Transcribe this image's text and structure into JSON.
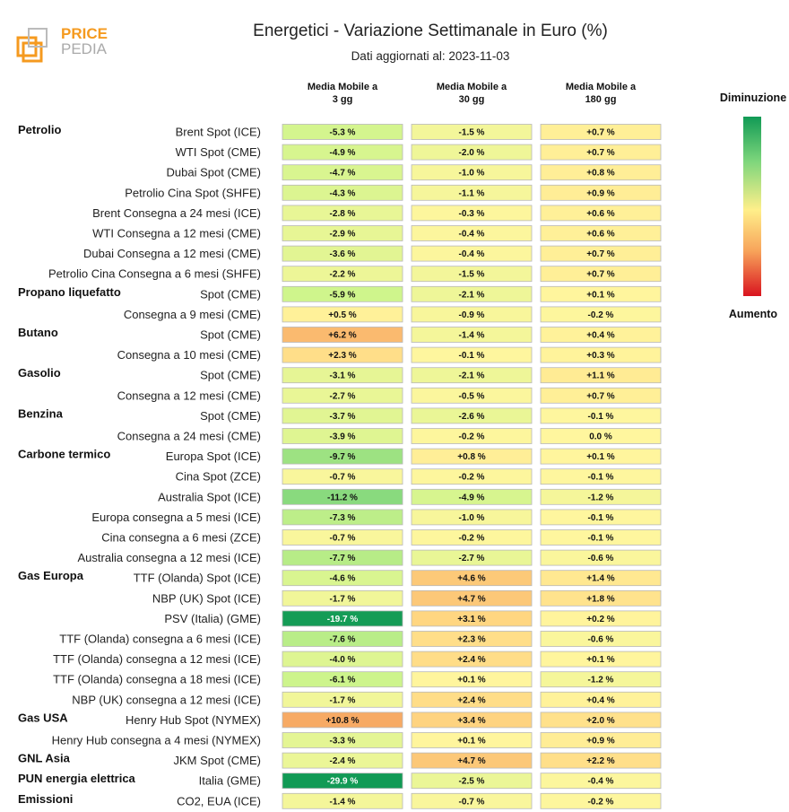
{
  "header": {
    "logo_text_top": "PRICE",
    "logo_text_bottom": "PEDIA",
    "title": "Energetici - Variazione Settimanale in Euro (%)",
    "subtitle": "Dati aggiornati al: 2023-11-03"
  },
  "legend": {
    "top_label": "Diminuzione",
    "bottom_label": "Aumento"
  },
  "chart_data": {
    "type": "table",
    "title": "Energetici - Variazione Settimanale in Euro (%)",
    "columns": [
      "Media Mobile a\n3 gg",
      "Media Mobile a\n30 gg",
      "Media Mobile a\n180 gg"
    ],
    "rows": [
      {
        "group": "Petrolio",
        "label": "Brent Spot (ICE)",
        "values": [
          "-5.3 %",
          "-1.5 %",
          "+0.7 %"
        ]
      },
      {
        "group": "",
        "label": "WTI Spot (CME)",
        "values": [
          "-4.9 %",
          "-2.0 %",
          "+0.7 %"
        ]
      },
      {
        "group": "",
        "label": "Dubai Spot (CME)",
        "values": [
          "-4.7 %",
          "-1.0 %",
          "+0.8 %"
        ]
      },
      {
        "group": "",
        "label": "Petrolio Cina Spot (SHFE)",
        "values": [
          "-4.3 %",
          "-1.1 %",
          "+0.9 %"
        ]
      },
      {
        "group": "",
        "label": "Brent Consegna a 24 mesi (ICE)",
        "values": [
          "-2.8 %",
          "-0.3 %",
          "+0.6 %"
        ]
      },
      {
        "group": "",
        "label": "WTI Consegna a 12 mesi (CME)",
        "values": [
          "-2.9 %",
          "-0.4 %",
          "+0.6 %"
        ]
      },
      {
        "group": "",
        "label": "Dubai Consegna a 12 mesi (CME)",
        "values": [
          "-3.6 %",
          "-0.4 %",
          "+0.7 %"
        ]
      },
      {
        "group": "",
        "label": "Petrolio Cina Consegna a 6 mesi (SHFE)",
        "values": [
          "-2.2 %",
          "-1.5 %",
          "+0.7 %"
        ]
      },
      {
        "group": "Propano liquefatto",
        "label": "Spot (CME)",
        "values": [
          "-5.9 %",
          "-2.1 %",
          "+0.1 %"
        ]
      },
      {
        "group": "",
        "label": "Consegna a 9 mesi (CME)",
        "values": [
          "+0.5 %",
          "-0.9 %",
          "-0.2 %"
        ]
      },
      {
        "group": "Butano",
        "label": "Spot (CME)",
        "values": [
          "+6.2 %",
          "-1.4 %",
          "+0.4 %"
        ]
      },
      {
        "group": "",
        "label": "Consegna a 10 mesi (CME)",
        "values": [
          "+2.3 %",
          "-0.1 %",
          "+0.3 %"
        ]
      },
      {
        "group": "Gasolio",
        "label": "Spot (CME)",
        "values": [
          "-3.1 %",
          "-2.1 %",
          "+1.1 %"
        ]
      },
      {
        "group": "",
        "label": "Consegna a 12 mesi (CME)",
        "values": [
          "-2.7 %",
          "-0.5 %",
          "+0.7 %"
        ]
      },
      {
        "group": "Benzina",
        "label": "Spot (CME)",
        "values": [
          "-3.7 %",
          "-2.6 %",
          "-0.1 %"
        ]
      },
      {
        "group": "",
        "label": "Consegna a 24 mesi (CME)",
        "values": [
          "-3.9 %",
          "-0.2 %",
          "0.0 %"
        ]
      },
      {
        "group": "Carbone termico",
        "label": "Europa Spot (ICE)",
        "values": [
          "-9.7 %",
          "+0.8 %",
          "+0.1 %"
        ]
      },
      {
        "group": "",
        "label": "Cina Spot (ZCE)",
        "values": [
          "-0.7 %",
          "-0.2 %",
          "-0.1 %"
        ]
      },
      {
        "group": "",
        "label": "Australia Spot (ICE)",
        "values": [
          "-11.2 %",
          "-4.9 %",
          "-1.2 %"
        ]
      },
      {
        "group": "",
        "label": "Europa consegna a 5 mesi (ICE)",
        "values": [
          "-7.3 %",
          "-1.0 %",
          "-0.1 %"
        ]
      },
      {
        "group": "",
        "label": "Cina consegna a 6 mesi (ZCE)",
        "values": [
          "-0.7 %",
          "-0.2 %",
          "-0.1 %"
        ]
      },
      {
        "group": "",
        "label": "Australia consegna a 12 mesi (ICE)",
        "values": [
          "-7.7 %",
          "-2.7 %",
          "-0.6 %"
        ]
      },
      {
        "group": "Gas Europa",
        "label": "TTF (Olanda) Spot (ICE)",
        "values": [
          "-4.6 %",
          "+4.6 %",
          "+1.4 %"
        ]
      },
      {
        "group": "",
        "label": "NBP (UK) Spot (ICE)",
        "values": [
          "-1.7 %",
          "+4.7 %",
          "+1.8 %"
        ]
      },
      {
        "group": "",
        "label": "PSV (Italia) (GME)",
        "values": [
          "-19.7 %",
          "+3.1 %",
          "+0.2 %"
        ]
      },
      {
        "group": "",
        "label": "TTF (Olanda) consegna a 6 mesi (ICE)",
        "values": [
          "-7.6 %",
          "+2.3 %",
          "-0.6 %"
        ]
      },
      {
        "group": "",
        "label": "TTF (Olanda) consegna a 12 mesi (ICE)",
        "values": [
          "-4.0 %",
          "+2.4 %",
          "+0.1 %"
        ]
      },
      {
        "group": "",
        "label": "TTF (Olanda) consegna a 18 mesi (ICE)",
        "values": [
          "-6.1 %",
          "+0.1 %",
          "-1.2 %"
        ]
      },
      {
        "group": "",
        "label": "NBP (UK) consegna a 12 mesi (ICE)",
        "values": [
          "-1.7 %",
          "+2.4 %",
          "+0.4 %"
        ]
      },
      {
        "group": "Gas USA",
        "label": "Henry Hub Spot (NYMEX)",
        "values": [
          "+10.8 %",
          "+3.4 %",
          "+2.0 %"
        ]
      },
      {
        "group": "",
        "label": "Henry Hub consegna a 4 mesi (NYMEX)",
        "values": [
          "-3.3 %",
          "+0.1 %",
          "+0.9 %"
        ]
      },
      {
        "group": "GNL Asia",
        "label": "JKM Spot (CME)",
        "values": [
          "-2.4 %",
          "+4.7 %",
          "+2.2 %"
        ]
      },
      {
        "group": "PUN energia elettrica",
        "label": "Italia (GME)",
        "values": [
          "-29.9 %",
          "-2.5 %",
          "-0.4 %"
        ]
      },
      {
        "group": "Emissioni",
        "label": "CO2, EUA (ICE)",
        "values": [
          "-1.4 %",
          "-0.7 %",
          "-0.2 %"
        ]
      }
    ]
  }
}
